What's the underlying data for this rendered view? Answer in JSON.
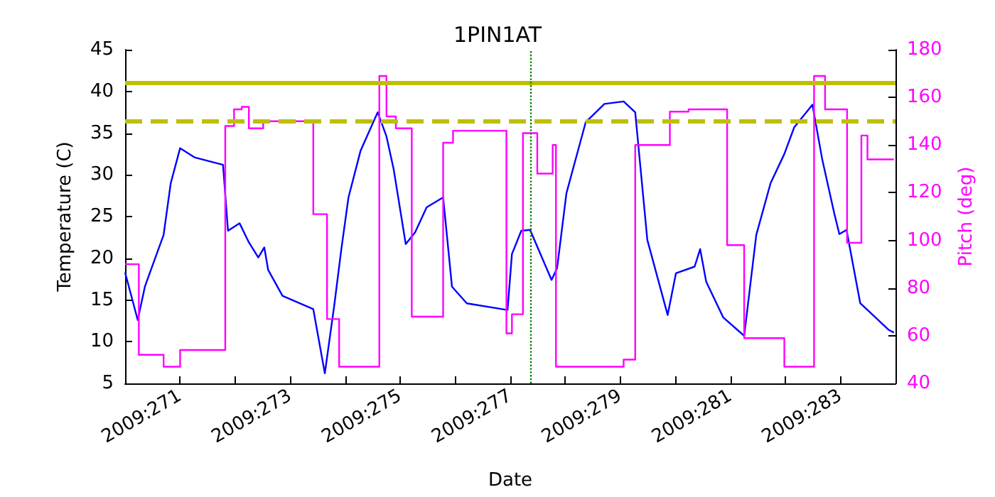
{
  "chart_data": {
    "type": "line",
    "title": "1PIN1AT",
    "xlabel": "Date",
    "ylabel": "Temperature (C)",
    "y2label": "Pitch (deg)",
    "xlim": [
      "2009-09-27",
      "2009-10-11"
    ],
    "xticks": [
      {
        "value": "2009-09-28",
        "label": "2009:271"
      },
      {
        "value": "2009-09-29",
        "label": null
      },
      {
        "value": "2009-09-30",
        "label": "2009:273"
      },
      {
        "value": "2009-10-01",
        "label": null
      },
      {
        "value": "2009-10-02",
        "label": "2009:275"
      },
      {
        "value": "2009-10-03",
        "label": null
      },
      {
        "value": "2009-10-04",
        "label": "2009:277"
      },
      {
        "value": "2009-10-05",
        "label": null
      },
      {
        "value": "2009-10-06",
        "label": "2009:279"
      },
      {
        "value": "2009-10-07",
        "label": null
      },
      {
        "value": "2009-10-08",
        "label": "2009:281"
      },
      {
        "value": "2009-10-09",
        "label": null
      },
      {
        "value": "2009-10-10",
        "label": "2009:283"
      }
    ],
    "ylim": [
      5,
      45
    ],
    "yticks": [
      5,
      10,
      15,
      20,
      25,
      30,
      35,
      40,
      45
    ],
    "y2lim": [
      40,
      180
    ],
    "y2ticks": [
      40,
      60,
      80,
      100,
      120,
      140,
      160,
      180
    ],
    "grid": false,
    "marker": "none",
    "series": [
      {
        "axis": "y",
        "color": "#0000ff",
        "x": [
          "2009-09-27T00:00",
          "2009-09-27T05:31",
          "2009-09-27T08:38",
          "2009-09-27T16:48",
          "2009-09-27T19:55",
          "2009-09-28T00:00",
          "2009-09-28T06:14",
          "2009-09-28T18:43",
          "2009-09-28T20:53",
          "2009-09-29T01:55",
          "2009-09-29T06:00",
          "2009-09-29T10:05",
          "2009-09-29T12:43",
          "2009-09-29T14:24",
          "2009-09-29T20:38",
          "2009-09-30T10:05",
          "2009-09-30T15:07",
          "2009-09-30T19:12",
          "2009-09-30T22:19",
          "2009-10-01T01:26",
          "2009-10-01T06:43",
          "2009-10-01T14:10",
          "2009-10-01T18:00",
          "2009-10-01T21:07",
          "2009-10-02T02:24",
          "2009-10-02T06:29",
          "2009-10-02T11:31",
          "2009-10-02T18:43",
          "2009-10-02T22:34",
          "2009-10-03T05:02",
          "2009-10-03T22:48",
          "2009-10-04T00:43",
          "2009-10-04T04:48",
          "2009-10-04T08:38",
          "2009-10-04T18:00",
          "2009-10-04T20:24",
          "2009-10-05T00:29",
          "2009-10-05T08:53",
          "2009-10-05T17:02",
          "2009-10-06T01:26",
          "2009-10-06T06:29",
          "2009-10-06T11:46",
          "2009-10-06T20:38",
          "2009-10-07T00:14",
          "2009-10-07T08:24",
          "2009-10-07T10:48",
          "2009-10-07T13:26",
          "2009-10-07T20:53",
          "2009-10-08T06:00",
          "2009-10-08T11:17",
          "2009-10-08T17:31",
          "2009-10-08T23:31",
          "2009-10-09T03:50",
          "2009-10-09T11:46",
          "2009-10-09T16:05",
          "2009-10-09T21:22",
          "2009-10-09T23:31",
          "2009-10-10T02:38",
          "2009-10-10T08:38",
          "2009-10-10T12:58",
          "2009-10-10T21:07",
          "2009-10-10T23:17"
        ],
        "values": [
          18.3,
          12.6,
          16.6,
          22.8,
          29.0,
          33.2,
          32.1,
          31.2,
          23.3,
          24.2,
          21.9,
          20.1,
          21.3,
          18.6,
          15.5,
          13.9,
          6.2,
          14.3,
          21.1,
          27.3,
          32.9,
          37.5,
          34.6,
          30.7,
          21.7,
          23.1,
          26.1,
          27.3,
          16.6,
          14.6,
          13.8,
          20.5,
          23.3,
          23.4,
          17.4,
          18.8,
          27.8,
          36.3,
          38.5,
          38.8,
          37.5,
          22.2,
          13.2,
          18.2,
          19.0,
          21.1,
          17.2,
          12.9,
          10.7,
          22.8,
          29.0,
          32.5,
          35.7,
          38.4,
          31.8,
          25.3,
          22.9,
          23.4,
          14.6,
          13.5,
          11.4,
          11.1
        ]
      },
      {
        "type": "step",
        "axis": "y2",
        "color": "#ff00ff",
        "x": [
          "2009-09-27T00:00",
          "2009-09-27T06:00",
          "2009-09-27T16:48",
          "2009-09-28T00:00",
          "2009-09-28T19:41",
          "2009-09-28T23:31",
          "2009-09-29T02:53",
          "2009-09-29T06:00",
          "2009-09-29T12:14",
          "2009-09-30T10:05",
          "2009-09-30T16:05",
          "2009-09-30T21:22",
          "2009-10-01T14:53",
          "2009-10-01T18:00",
          "2009-10-01T22:05",
          "2009-10-02T05:02",
          "2009-10-02T18:43",
          "2009-10-02T23:02",
          "2009-10-03T22:19",
          "2009-10-04T00:43",
          "2009-10-04T05:31",
          "2009-10-04T11:46",
          "2009-10-04T18:29",
          "2009-10-04T19:55",
          "2009-10-06T01:26",
          "2009-10-06T06:29",
          "2009-10-06T21:36",
          "2009-10-07T05:46",
          "2009-10-07T22:34",
          "2009-10-08T06:00",
          "2009-10-08T23:31",
          "2009-10-09T12:29",
          "2009-10-09T17:17",
          "2009-10-10T02:53",
          "2009-10-10T09:07",
          "2009-10-10T11:46",
          "2009-10-10T23:17"
        ],
        "values": [
          90,
          52,
          47,
          54,
          148,
          155,
          156,
          147,
          150,
          111,
          67,
          47,
          169,
          152,
          147,
          68,
          141,
          146,
          61,
          69,
          145,
          128,
          140,
          47,
          50,
          140,
          154,
          155,
          98,
          59,
          47,
          169,
          155,
          99,
          144,
          134,
          134
        ]
      }
    ],
    "ref_lines": [
      {
        "axis": "y2",
        "value": 166,
        "color": "#bfbf00",
        "line_style": "solid"
      },
      {
        "axis": "y2",
        "value": 150,
        "color": "#bfbf00",
        "line_style": "dashed"
      },
      {
        "axis": "x",
        "value": "2009-10-04T09:07",
        "color": "#008000",
        "line_style": "dotted"
      }
    ]
  }
}
